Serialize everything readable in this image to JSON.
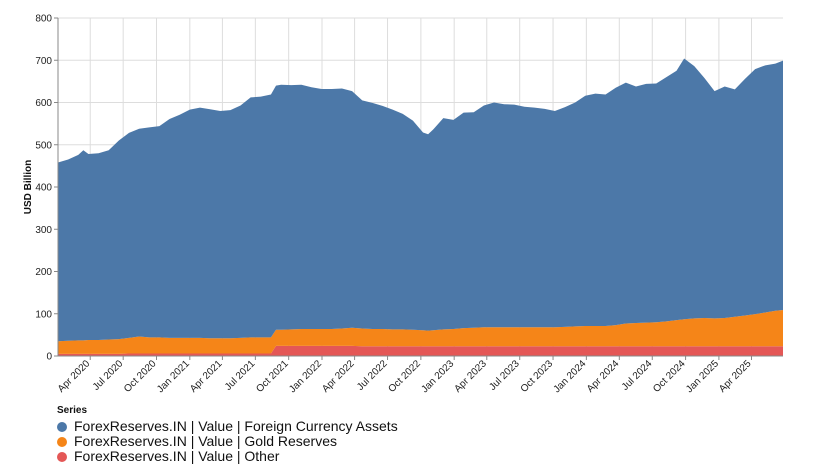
{
  "chart_data": {
    "type": "area",
    "stacked": true,
    "ylabel": "USD Billion",
    "xlabel": "",
    "ylim": [
      0,
      800
    ],
    "y_ticks": [
      0,
      100,
      200,
      300,
      400,
      500,
      600,
      700,
      800
    ],
    "x_range": [
      "2020-01-03",
      "2025-06-27"
    ],
    "x_ticks": [
      {
        "date": "2020-04-01",
        "label": "Apr 2020"
      },
      {
        "date": "2020-07-01",
        "label": "Jul 2020"
      },
      {
        "date": "2020-10-01",
        "label": "Oct 2020"
      },
      {
        "date": "2021-01-01",
        "label": "Jan 2021"
      },
      {
        "date": "2021-04-01",
        "label": "Apr 2021"
      },
      {
        "date": "2021-07-01",
        "label": "Jul 2021"
      },
      {
        "date": "2021-10-01",
        "label": "Oct 2021"
      },
      {
        "date": "2022-01-01",
        "label": "Jan 2022"
      },
      {
        "date": "2022-04-01",
        "label": "Apr 2022"
      },
      {
        "date": "2022-07-01",
        "label": "Jul 2022"
      },
      {
        "date": "2022-10-01",
        "label": "Oct 2022"
      },
      {
        "date": "2023-01-01",
        "label": "Jan 2023"
      },
      {
        "date": "2023-04-01",
        "label": "Apr 2023"
      },
      {
        "date": "2023-07-01",
        "label": "Jul 2023"
      },
      {
        "date": "2023-10-01",
        "label": "Oct 2023"
      },
      {
        "date": "2024-01-01",
        "label": "Jan 2024"
      },
      {
        "date": "2024-04-01",
        "label": "Apr 2024"
      },
      {
        "date": "2024-07-01",
        "label": "Jul 2024"
      },
      {
        "date": "2024-10-01",
        "label": "Oct 2024"
      },
      {
        "date": "2025-01-01",
        "label": "Jan 2025"
      },
      {
        "date": "2025-04-01",
        "label": "Apr 2025"
      }
    ],
    "grid": true,
    "legend_title": "Series",
    "legend_position": "bottom-left",
    "dates": [
      "2020-01-03",
      "2020-01-31",
      "2020-02-28",
      "2020-03-13",
      "2020-03-27",
      "2020-04-24",
      "2020-05-22",
      "2020-06-19",
      "2020-07-17",
      "2020-08-14",
      "2020-09-11",
      "2020-10-09",
      "2020-11-06",
      "2020-12-04",
      "2021-01-01",
      "2021-01-29",
      "2021-02-26",
      "2021-03-26",
      "2021-04-23",
      "2021-05-21",
      "2021-06-18",
      "2021-07-16",
      "2021-08-13",
      "2021-08-27",
      "2021-09-10",
      "2021-10-08",
      "2021-11-05",
      "2021-12-03",
      "2021-12-31",
      "2022-01-28",
      "2022-02-25",
      "2022-03-25",
      "2022-04-22",
      "2022-05-20",
      "2022-06-17",
      "2022-07-15",
      "2022-08-12",
      "2022-09-09",
      "2022-10-07",
      "2022-10-21",
      "2022-11-04",
      "2022-12-02",
      "2022-12-30",
      "2023-01-27",
      "2023-02-24",
      "2023-03-24",
      "2023-04-21",
      "2023-05-19",
      "2023-06-16",
      "2023-07-14",
      "2023-08-11",
      "2023-09-08",
      "2023-10-06",
      "2023-11-03",
      "2023-12-01",
      "2023-12-29",
      "2024-01-26",
      "2024-02-23",
      "2024-03-22",
      "2024-04-19",
      "2024-05-17",
      "2024-06-14",
      "2024-07-12",
      "2024-08-09",
      "2024-09-06",
      "2024-09-27",
      "2024-10-25",
      "2024-11-22",
      "2024-12-20",
      "2025-01-17",
      "2025-02-14",
      "2025-03-14",
      "2025-04-11",
      "2025-05-09",
      "2025-06-06",
      "2025-06-27"
    ],
    "series": [
      {
        "name": "ForexReserves.IN | Value | Other",
        "color": "#e45756",
        "values": [
          5,
          5,
          5,
          5,
          5,
          5,
          5,
          5,
          6,
          6,
          6,
          6,
          6,
          6,
          6,
          6,
          6,
          6,
          6,
          6,
          6,
          6,
          6,
          24,
          24,
          24,
          24,
          24,
          24,
          24,
          24,
          24,
          23,
          23,
          23,
          23,
          23,
          23,
          23,
          23,
          23,
          23,
          23,
          23,
          23,
          23,
          23,
          23,
          23,
          23,
          23,
          23,
          23,
          23,
          23,
          23,
          23,
          23,
          23,
          23,
          23,
          23,
          23,
          23,
          23,
          23,
          23,
          23,
          23,
          23,
          23,
          23,
          23,
          23,
          23,
          23
        ]
      },
      {
        "name": "ForexReserves.IN | Value | Gold Reserves",
        "color": "#f58518",
        "values": [
          30,
          31,
          32,
          32,
          33,
          33,
          34,
          35,
          37,
          40,
          38,
          38,
          37,
          37,
          37,
          37,
          36,
          36,
          36,
          37,
          38,
          38,
          38,
          38,
          38,
          39,
          40,
          40,
          40,
          40,
          41,
          43,
          42,
          41,
          41,
          40,
          40,
          39,
          38,
          37,
          38,
          40,
          41,
          43,
          44,
          45,
          45,
          45,
          45,
          45,
          45,
          45,
          45,
          46,
          47,
          48,
          48,
          48,
          50,
          54,
          55,
          56,
          57,
          59,
          62,
          64,
          66,
          67,
          66,
          67,
          70,
          73,
          76,
          80,
          84,
          86
        ]
      },
      {
        "name": "ForexReserves.IN | Value | Foreign Currency Assets",
        "color": "#4c78a8",
        "values": [
          423,
          429,
          439,
          450,
          440,
          442,
          448,
          470,
          485,
          492,
          497,
          500,
          518,
          528,
          540,
          545,
          542,
          538,
          540,
          550,
          568,
          570,
          575,
          578,
          580,
          578,
          578,
          572,
          568,
          568,
          568,
          560,
          540,
          535,
          528,
          520,
          510,
          495,
          468,
          465,
          475,
          500,
          495,
          510,
          510,
          525,
          532,
          528,
          527,
          522,
          520,
          517,
          512,
          520,
          530,
          545,
          550,
          548,
          562,
          570,
          560,
          565,
          565,
          578,
          590,
          617,
          597,
          568,
          538,
          548,
          538,
          560,
          580,
          585,
          585,
          590
        ]
      }
    ]
  }
}
